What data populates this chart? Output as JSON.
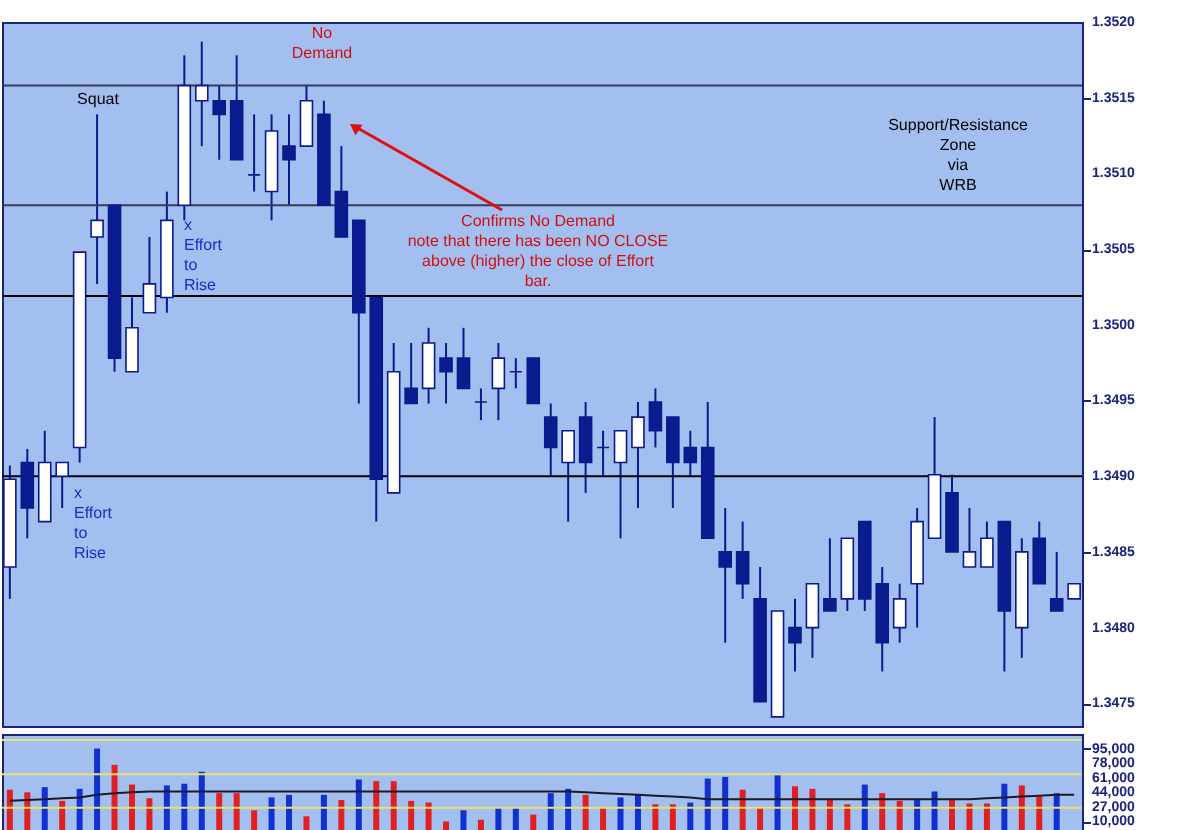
{
  "chart_data": [
    {
      "type": "candlestick",
      "categories": [
        null,
        null,
        null,
        null,
        null,
        null,
        null,
        null,
        null,
        null,
        null,
        null,
        null,
        null,
        null,
        null,
        null,
        null,
        null,
        null,
        null,
        null,
        null,
        null,
        null,
        null,
        null,
        null,
        null,
        null,
        null,
        null,
        null,
        null,
        null,
        null,
        null,
        null,
        null,
        null,
        null,
        null,
        null,
        null,
        null,
        null,
        null,
        null,
        null,
        null,
        null,
        null,
        null,
        null,
        null,
        null,
        null,
        null,
        null,
        null,
        null,
        null
      ],
      "ohlc": [
        [
          1.3484,
          1.34907,
          1.34819,
          1.34898
        ],
        [
          1.34909,
          1.34918,
          1.34859,
          1.34879
        ],
        [
          1.3487,
          1.3493,
          1.3487,
          1.34909
        ],
        [
          1.349,
          1.34909,
          1.34879,
          1.34909
        ],
        [
          1.34919,
          1.35048,
          1.34909,
          1.35048
        ],
        [
          1.35058,
          1.35139,
          1.35027,
          1.35069
        ],
        [
          1.35079,
          1.35079,
          1.34969,
          1.34978
        ],
        [
          1.34969,
          1.35018,
          1.34969,
          1.34998
        ],
        [
          1.35008,
          1.35058,
          1.35008,
          1.35027
        ],
        [
          1.35018,
          1.35088,
          1.35008,
          1.35069
        ],
        [
          1.35079,
          1.35178,
          1.35069,
          1.35158
        ],
        [
          1.35148,
          1.35187,
          1.35118,
          1.35158
        ],
        [
          1.35148,
          1.35158,
          1.35109,
          1.35139
        ],
        [
          1.35148,
          1.35178,
          1.35109,
          1.35109
        ],
        [
          1.35099,
          1.35139,
          1.35088,
          1.35099
        ],
        [
          1.35088,
          1.35139,
          1.35069,
          1.35128
        ],
        [
          1.35118,
          1.35139,
          1.35079,
          1.35109
        ],
        [
          1.35118,
          1.35158,
          1.35118,
          1.35148
        ],
        [
          1.35139,
          1.35148,
          1.35079,
          1.35079
        ],
        [
          1.35088,
          1.35118,
          1.35058,
          1.35058
        ],
        [
          1.35069,
          1.35069,
          1.34948,
          1.35008
        ],
        [
          1.35018,
          1.35018,
          1.3487,
          1.34898
        ],
        [
          1.34889,
          1.34988,
          1.34889,
          1.34969
        ],
        [
          1.34958,
          1.34988,
          1.34948,
          1.34948
        ],
        [
          1.34958,
          1.34998,
          1.34948,
          1.34988
        ],
        [
          1.34978,
          1.34988,
          1.34948,
          1.34969
        ],
        [
          1.34978,
          1.34998,
          1.34958,
          1.34958
        ],
        [
          1.34949,
          1.34958,
          1.34937,
          1.34949
        ],
        [
          1.34958,
          1.34988,
          1.34937,
          1.34978
        ],
        [
          1.34969,
          1.34978,
          1.34958,
          1.34969
        ],
        [
          1.34978,
          1.34978,
          1.34948,
          1.34948
        ],
        [
          1.34939,
          1.34948,
          1.349,
          1.34919
        ],
        [
          1.34909,
          1.3493,
          1.3487,
          1.3493
        ],
        [
          1.34939,
          1.34949,
          1.34889,
          1.34909
        ],
        [
          1.34919,
          1.3493,
          1.349,
          1.34919
        ],
        [
          1.34909,
          1.3493,
          1.34859,
          1.3493
        ],
        [
          1.34919,
          1.34949,
          1.34879,
          1.34939
        ],
        [
          1.34949,
          1.34958,
          1.34919,
          1.3493
        ],
        [
          1.34939,
          1.34939,
          1.34879,
          1.34909
        ],
        [
          1.34919,
          1.3493,
          1.349,
          1.34909
        ],
        [
          1.34919,
          1.34949,
          1.34859,
          1.34859
        ],
        [
          1.3485,
          1.34879,
          1.3479,
          1.3484
        ],
        [
          1.3485,
          1.3487,
          1.34819,
          1.34829
        ],
        [
          1.34819,
          1.3484,
          1.34751,
          1.34751
        ],
        [
          1.34741,
          1.34811,
          1.34741,
          1.34811
        ],
        [
          1.348,
          1.34819,
          1.34771,
          1.3479
        ],
        [
          1.348,
          1.34829,
          1.3478,
          1.34829
        ],
        [
          1.34819,
          1.34859,
          1.34811,
          1.34811
        ],
        [
          1.34819,
          1.34859,
          1.34811,
          1.34859
        ],
        [
          1.3487,
          1.3487,
          1.34811,
          1.34819
        ],
        [
          1.34829,
          1.3484,
          1.34771,
          1.3479
        ],
        [
          1.348,
          1.34829,
          1.3479,
          1.34819
        ],
        [
          1.34829,
          1.34879,
          1.348,
          1.3487
        ],
        [
          1.34859,
          1.34939,
          1.34859,
          1.34901
        ],
        [
          1.34889,
          1.34901,
          1.3485,
          1.3485
        ],
        [
          1.3484,
          1.34879,
          1.3484,
          1.3485
        ],
        [
          1.3484,
          1.3487,
          1.3484,
          1.34859
        ],
        [
          1.3487,
          1.3487,
          1.34771,
          1.34811
        ],
        [
          1.348,
          1.34859,
          1.3478,
          1.3485
        ],
        [
          1.34859,
          1.3487,
          1.34829,
          1.34829
        ],
        [
          1.34819,
          1.3485,
          1.34811,
          1.34811
        ],
        [
          1.34819,
          1.34829,
          1.34819,
          1.34829
        ]
      ],
      "colors": [
        "#ffffff",
        "#0a1c8f",
        "#ffffff",
        "#ffffff",
        "#ffffff",
        "#ffffff",
        "#0a1c8f",
        "#ffffff",
        "#ffffff",
        "#ffffff",
        "#ffffff",
        "#ffffff",
        "#0a1c8f",
        "#0a1c8f",
        "#0a1c8f",
        "#ffffff",
        "#0a1c8f",
        "#ffffff",
        "#0a1c8f",
        "#0a1c8f",
        "#0a1c8f",
        "#0a1c8f",
        "#ffffff",
        "#0a1c8f",
        "#ffffff",
        "#0a1c8f",
        "#0a1c8f",
        "#0a1c8f",
        "#ffffff",
        "#0a1c8f",
        "#0a1c8f",
        "#0a1c8f",
        "#ffffff",
        "#0a1c8f",
        "#0a1c8f",
        "#ffffff",
        "#ffffff",
        "#0a1c8f",
        "#0a1c8f",
        "#0a1c8f",
        "#0a1c8f",
        "#0a1c8f",
        "#0a1c8f",
        "#0a1c8f",
        "#ffffff",
        "#0a1c8f",
        "#ffffff",
        "#0a1c8f",
        "#ffffff",
        "#0a1c8f",
        "#0a1c8f",
        "#ffffff",
        "#ffffff",
        "#ffffff",
        "#0a1c8f",
        "#ffffff",
        "#ffffff",
        "#0a1c8f",
        "#ffffff",
        "#0a1c8f",
        "#0a1c8f",
        "#ffffff"
      ],
      "ylim": [
        1.34735,
        1.352
      ],
      "yticks": [
        {
          "value": 1.3475,
          "label": "1.3475"
        },
        {
          "value": 1.348,
          "label": "1.3480"
        },
        {
          "value": 1.3485,
          "label": "1.3485"
        },
        {
          "value": 1.349,
          "label": "1.3490"
        },
        {
          "value": 1.3495,
          "label": "1.3495"
        },
        {
          "value": 1.35,
          "label": "1.3500"
        },
        {
          "value": 1.3505,
          "label": "1.3505"
        },
        {
          "value": 1.351,
          "label": "1.3510"
        },
        {
          "value": 1.3515,
          "label": "1.3515"
        },
        {
          "value": 1.352,
          "label": "1.3520"
        }
      ],
      "tick_labels": "y",
      "ref_lines": [
        {
          "axis": "y",
          "value": 1.35158,
          "color": "#3a3a5a"
        },
        {
          "axis": "y",
          "value": 1.35079,
          "color": "#3a3a5a"
        },
        {
          "axis": "y",
          "value": 1.35019,
          "color": "#000000"
        },
        {
          "axis": "y",
          "value": 1.349,
          "color": "#000000"
        }
      ],
      "annotations": [
        "Squat",
        "No\nDemand",
        "x\nEffort\nto\nRise",
        "x\nEffort\nto\nRise",
        "Confirms No Demand\nnote that there has been NO CLOSE\nabove (higher) the close of Effort\nbar.",
        "Support/Resistance\nZone\nvia\nWRB"
      ]
    },
    {
      "type": "bar",
      "categories": [
        null,
        null,
        null,
        null,
        null,
        null,
        null,
        null,
        null,
        null,
        null,
        null,
        null,
        null,
        null,
        null,
        null,
        null,
        null,
        null,
        null,
        null,
        null,
        null,
        null,
        null,
        null,
        null,
        null,
        null,
        null,
        null,
        null,
        null,
        null,
        null,
        null,
        null,
        null,
        null,
        null,
        null,
        null,
        null,
        null,
        null,
        null,
        null,
        null,
        null,
        null,
        null,
        null,
        null,
        null,
        null,
        null,
        null,
        null,
        null,
        null,
        null
      ],
      "series": [
        {
          "type": "bar",
          "values": [
            47000,
            44000,
            50000,
            34000,
            48000,
            95000,
            76000,
            53000,
            37000,
            52000,
            54000,
            68000,
            43000,
            43000,
            23000,
            38000,
            41000,
            16000,
            41000,
            35000,
            59000,
            57000,
            57000,
            34000,
            32000,
            10000,
            23000,
            12000,
            26000,
            26000,
            18000,
            43000,
            48000,
            41000,
            26000,
            38000,
            41000,
            30000,
            30000,
            32000,
            60000,
            62000,
            47000,
            26000,
            64000,
            51000,
            48000,
            36000,
            30000,
            53000,
            43000,
            34000,
            35000,
            45000,
            35000,
            31000,
            31000,
            54000,
            52000,
            39000,
            43000,
            null
          ],
          "colors": [
            "#e02020",
            "#e02020",
            "#1030d0",
            "#e02020",
            "#1030d0",
            "#1030d0",
            "#e02020",
            "#e02020",
            "#e02020",
            "#1030d0",
            "#1030d0",
            "#1030d0",
            "#e02020",
            "#e02020",
            "#e02020",
            "#1030d0",
            "#1030d0",
            "#e02020",
            "#1030d0",
            "#e02020",
            "#1030d0",
            "#e02020",
            "#e02020",
            "#e02020",
            "#e02020",
            "#e02020",
            "#1030d0",
            "#e02020",
            "#1030d0",
            "#1030d0",
            "#e02020",
            "#1030d0",
            "#1030d0",
            "#e02020",
            "#e02020",
            "#1030d0",
            "#1030d0",
            "#e02020",
            "#e02020",
            "#1030d0",
            "#1030d0",
            "#1030d0",
            "#e02020",
            "#e02020",
            "#1030d0",
            "#e02020",
            "#e02020",
            "#e02020",
            "#e02020",
            "#1030d0",
            "#e02020",
            "#e02020",
            "#1030d0",
            "#1030d0",
            "#e02020",
            "#e02020",
            "#e02020",
            "#1030d0",
            "#e02020",
            "#e02020",
            "#1030d0",
            "#e02020"
          ]
        },
        {
          "type": "line",
          "color": "#1a1a2a",
          "values": [
            34000,
            35000,
            36000,
            37000,
            38000,
            41000,
            43000,
            44000,
            45000,
            45000,
            45000,
            45000,
            45000,
            45000,
            45000,
            45000,
            45000,
            45000,
            45000,
            45000,
            45000,
            45000,
            45000,
            45000,
            45000,
            45000,
            45000,
            45000,
            45000,
            45000,
            45000,
            45000,
            45000,
            44000,
            43000,
            42000,
            41000,
            40000,
            39000,
            38000,
            36000,
            36000,
            36000,
            36000,
            36000,
            36000,
            36000,
            36000,
            36000,
            36000,
            36000,
            36000,
            36000,
            36000,
            36000,
            36000,
            37000,
            38000,
            39000,
            40000,
            41000,
            41000
          ]
        }
      ],
      "ylim": [
        0,
        112000
      ],
      "yticks": [
        {
          "value": 10000,
          "label": "10,000"
        },
        {
          "value": 27000,
          "label": "27,000"
        },
        {
          "value": 44000,
          "label": "44,000"
        },
        {
          "value": 61000,
          "label": "61,000"
        },
        {
          "value": 78000,
          "label": "78,000"
        },
        {
          "value": 95000,
          "label": "95,000"
        }
      ],
      "tick_labels": "y",
      "ref_lines": [
        {
          "axis": "y",
          "value": 105000,
          "color": "#e6e070"
        },
        {
          "axis": "y",
          "value": 65000,
          "color": "#e6e070"
        },
        {
          "axis": "y",
          "value": 26000,
          "color": "#e6e070"
        }
      ]
    }
  ]
}
